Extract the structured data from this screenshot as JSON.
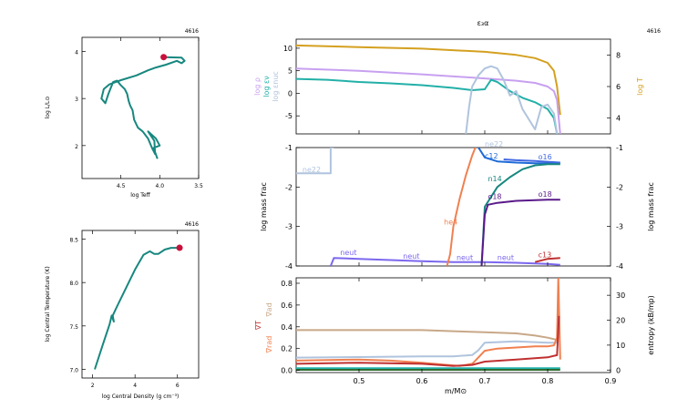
{
  "model_number": "4616",
  "chart_data": [
    {
      "id": "hr",
      "type": "line",
      "xlabel": "log Teff",
      "ylabel": "log L/L⊙",
      "xlim": [
        5.0,
        3.5
      ],
      "ylim": [
        1.3,
        4.3
      ],
      "xticks": [
        4.5,
        4.0,
        3.5
      ],
      "yticks": [
        2,
        3,
        4
      ],
      "color": "#17877f",
      "x": [
        3.95,
        3.72,
        3.68,
        3.72,
        3.78,
        3.92,
        4.05,
        4.15,
        4.3,
        4.5,
        4.65,
        4.72,
        4.75,
        4.7,
        4.66,
        4.6,
        4.55,
        4.5,
        4.45,
        4.42,
        4.4,
        4.38,
        4.35,
        4.33,
        4.28,
        4.22,
        4.15,
        4.1,
        4.06,
        4.07,
        4.15,
        4.05,
        4.0,
        4.08,
        4.03
      ],
      "y": [
        3.88,
        3.87,
        3.8,
        3.75,
        3.8,
        3.72,
        3.66,
        3.6,
        3.49,
        3.39,
        3.3,
        3.2,
        3.0,
        2.9,
        3.1,
        3.35,
        3.38,
        3.28,
        3.2,
        3.1,
        2.95,
        2.85,
        2.75,
        2.55,
        2.38,
        2.3,
        2.15,
        1.95,
        1.82,
        2.1,
        2.3,
        2.15,
        2.0,
        1.95,
        1.72
      ],
      "current_point": [
        3.95,
        3.88
      ],
      "current_color": "#c8103a"
    },
    {
      "id": "center",
      "type": "line",
      "xlabel": "log Central Density (g cm⁻³)",
      "ylabel": "log Central Temperature (K)",
      "xlim": [
        1.5,
        7.0
      ],
      "ylim": [
        6.9,
        8.6
      ],
      "xticks": [
        2,
        4,
        6
      ],
      "yticks": [
        7.0,
        7.5,
        8.0,
        8.5
      ],
      "color": "#17877f",
      "x": [
        2.1,
        2.5,
        2.8,
        2.9,
        3.0,
        2.95,
        3.2,
        3.6,
        4.0,
        4.4,
        4.7,
        4.9,
        5.1,
        5.4,
        5.7,
        6.1
      ],
      "y": [
        7.0,
        7.3,
        7.52,
        7.62,
        7.55,
        7.62,
        7.75,
        7.95,
        8.15,
        8.32,
        8.36,
        8.33,
        8.33,
        8.38,
        8.4,
        8.4
      ],
      "current_point": [
        6.1,
        8.4
      ],
      "current_color": "#c8103a"
    },
    {
      "id": "profile_top",
      "type": "line",
      "title": "ε₃α",
      "ylabel_left": [
        "log ρ",
        "log εν",
        "log εnuc"
      ],
      "ylabel_right": "log T",
      "xlim": [
        0.4,
        0.9
      ],
      "ylim": [
        -9,
        12
      ],
      "ylim_right": [
        3.0,
        9.0
      ],
      "yticks": [
        -5,
        0,
        5,
        10
      ],
      "yticks_right": [
        4,
        6,
        8
      ],
      "series": [
        {
          "color": "#d4a020",
          "axis": "right",
          "x": [
            0.4,
            0.5,
            0.6,
            0.7,
            0.75,
            0.78,
            0.8,
            0.81,
            0.815,
            0.82
          ],
          "y": [
            8.6,
            8.5,
            8.4,
            8.2,
            8.0,
            7.8,
            7.5,
            7.0,
            6.0,
            4.2
          ]
        },
        {
          "color": "#c8a0f0",
          "axis": "left",
          "x": [
            0.4,
            0.5,
            0.6,
            0.7,
            0.75,
            0.78,
            0.8,
            0.81,
            0.815,
            0.82
          ],
          "y": [
            5.5,
            5.0,
            4.2,
            3.3,
            2.8,
            2.3,
            1.5,
            0.5,
            -1.5,
            -9.0
          ]
        },
        {
          "color": "#22b0a8",
          "axis": "left",
          "x": [
            0.4,
            0.45,
            0.5,
            0.55,
            0.6,
            0.65,
            0.68,
            0.7,
            0.71,
            0.72,
            0.74,
            0.76,
            0.78,
            0.8,
            0.81,
            0.815
          ],
          "y": [
            3.2,
            3.0,
            2.5,
            2.2,
            1.8,
            1.2,
            0.7,
            0.9,
            3.0,
            2.5,
            0.5,
            -1.0,
            -2.0,
            -3.5,
            -5.5,
            -9.0
          ]
        },
        {
          "color": "#b0c4de",
          "axis": "left",
          "x": [
            0.67,
            0.675,
            0.68,
            0.69,
            0.7,
            0.71,
            0.72,
            0.73,
            0.74,
            0.75,
            0.76,
            0.78,
            0.79,
            0.8,
            0.81,
            0.815
          ],
          "y": [
            -9.0,
            -3.0,
            1.5,
            4.0,
            5.5,
            6.0,
            5.5,
            3.0,
            -0.5,
            0.5,
            -3.5,
            -8.0,
            -3.0,
            -2.5,
            -4.5,
            -9.0
          ]
        }
      ]
    },
    {
      "id": "profile_mid",
      "type": "line",
      "ylabel": "log mass frac",
      "ylabel_right": "log mass frac",
      "xlim": [
        0.4,
        0.9
      ],
      "ylim": [
        -4,
        -1
      ],
      "yticks": [
        -4,
        -3,
        -2,
        -1
      ],
      "series": [
        {
          "name": "ne22",
          "color": "#b0c4de",
          "x": [
            0.4,
            0.455,
            0.455,
            0.46
          ],
          "y": [
            -1.65,
            -1.65,
            -1.0,
            -1.0
          ]
        },
        {
          "name": "neut",
          "color": "#7b68ee",
          "x": [
            0.455,
            0.46,
            0.5,
            0.55,
            0.6,
            0.65,
            0.7,
            0.75,
            0.8,
            0.82
          ],
          "y": [
            -4.0,
            -3.8,
            -3.82,
            -3.85,
            -3.88,
            -3.9,
            -3.9,
            -3.92,
            -3.95,
            -3.97
          ]
        },
        {
          "name": "he4",
          "color": "#f08050",
          "x": [
            0.64,
            0.645,
            0.65,
            0.66,
            0.67,
            0.68,
            0.685
          ],
          "y": [
            -4.0,
            -3.7,
            -3.0,
            -2.3,
            -1.7,
            -1.2,
            -1.0
          ]
        },
        {
          "name": "c12",
          "color": "#1e6ad8",
          "x": [
            0.69,
            0.7,
            0.72,
            0.75,
            0.78,
            0.8,
            0.82
          ],
          "y": [
            -1.0,
            -1.25,
            -1.35,
            -1.38,
            -1.4,
            -1.4,
            -1.4
          ]
        },
        {
          "name": "o16",
          "color": "#4169e1",
          "x": [
            0.73,
            0.75,
            0.78,
            0.8,
            0.82
          ],
          "y": [
            -1.3,
            -1.32,
            -1.34,
            -1.36,
            -1.38
          ]
        },
        {
          "name": "n14",
          "color": "#17877f",
          "x": [
            0.695,
            0.7,
            0.72,
            0.74,
            0.76,
            0.78,
            0.8,
            0.82
          ],
          "y": [
            -4.0,
            -2.5,
            -2.0,
            -1.75,
            -1.55,
            -1.45,
            -1.42,
            -1.42
          ]
        },
        {
          "name": "o18",
          "color": "#5a1a8a",
          "x": [
            0.695,
            0.7,
            0.705,
            0.72,
            0.75,
            0.8,
            0.82
          ],
          "y": [
            -4.0,
            -2.7,
            -2.45,
            -2.4,
            -2.35,
            -2.32,
            -2.32
          ]
        },
        {
          "name": "c13",
          "color": "#c03030",
          "x": [
            0.78,
            0.8,
            0.82
          ],
          "y": [
            -3.9,
            -3.82,
            -3.8
          ]
        }
      ],
      "labels": [
        {
          "text": "ne22",
          "x": 0.41,
          "y": -1.62,
          "color": "#b0c4de"
        },
        {
          "text": "ne22",
          "x": 0.7,
          "y": -0.98,
          "color": "#b0c4de"
        },
        {
          "text": "c12",
          "x": 0.7,
          "y": -1.28,
          "color": "#1e6ad8"
        },
        {
          "text": "o16",
          "x": 0.785,
          "y": -1.3,
          "color": "#4169e1"
        },
        {
          "text": "n14",
          "x": 0.705,
          "y": -1.85,
          "color": "#17877f"
        },
        {
          "text": "o18",
          "x": 0.705,
          "y": -2.3,
          "color": "#5a1a8a"
        },
        {
          "text": "o18",
          "x": 0.785,
          "y": -2.25,
          "color": "#5a1a8a"
        },
        {
          "text": "he4",
          "x": 0.635,
          "y": -2.95,
          "color": "#f08050"
        },
        {
          "text": "neut",
          "x": 0.47,
          "y": -3.72,
          "color": "#7b68ee"
        },
        {
          "text": "neut",
          "x": 0.57,
          "y": -3.82,
          "color": "#7b68ee"
        },
        {
          "text": "neut",
          "x": 0.655,
          "y": -3.85,
          "color": "#7b68ee"
        },
        {
          "text": "neut",
          "x": 0.72,
          "y": -3.85,
          "color": "#7b68ee"
        },
        {
          "text": "c13",
          "x": 0.785,
          "y": -3.78,
          "color": "#c03030"
        }
      ]
    },
    {
      "id": "profile_bot",
      "type": "line",
      "xlabel": "m/M⊙",
      "ylabel_left": [
        "∇T",
        "∇ad",
        "∇rad"
      ],
      "ylabel_right": "entropy (kB/mp)",
      "xlim": [
        0.4,
        0.9
      ],
      "xticks": [
        0.5,
        0.6,
        0.7,
        0.8,
        0.9
      ],
      "ylim": [
        -0.02,
        0.85
      ],
      "yticks": [
        0.0,
        0.2,
        0.4,
        0.6,
        0.8
      ],
      "ylim_right": [
        -1,
        37
      ],
      "yticks_right": [
        0,
        10,
        20,
        30
      ],
      "series": [
        {
          "color": "#c8a888",
          "axis": "left",
          "x": [
            0.4,
            0.5,
            0.6,
            0.65,
            0.7,
            0.75,
            0.78,
            0.8,
            0.815
          ],
          "y": [
            0.37,
            0.37,
            0.37,
            0.36,
            0.35,
            0.34,
            0.32,
            0.3,
            0.28
          ]
        },
        {
          "color": "#b0c4de",
          "axis": "right",
          "x": [
            0.4,
            0.5,
            0.6,
            0.65,
            0.68,
            0.69,
            0.7,
            0.75,
            0.8,
            0.815
          ],
          "y": [
            5.0,
            5.2,
            5.5,
            5.5,
            6.0,
            8.0,
            11.0,
            11.5,
            11.0,
            11.0
          ]
        },
        {
          "color": "#f08050",
          "axis": "left",
          "x": [
            0.4,
            0.5,
            0.55,
            0.6,
            0.64,
            0.66,
            0.68,
            0.69,
            0.7,
            0.72,
            0.75,
            0.78,
            0.8,
            0.81,
            0.815,
            0.817,
            0.82
          ],
          "y": [
            0.09,
            0.1,
            0.09,
            0.07,
            0.05,
            0.04,
            0.06,
            0.12,
            0.18,
            0.2,
            0.21,
            0.22,
            0.22,
            0.23,
            0.3,
            0.85,
            0.1
          ]
        },
        {
          "color": "#c03030",
          "axis": "left",
          "x": [
            0.4,
            0.5,
            0.6,
            0.65,
            0.68,
            0.7,
            0.75,
            0.8,
            0.815,
            0.818
          ],
          "y": [
            0.06,
            0.07,
            0.06,
            0.04,
            0.05,
            0.08,
            0.1,
            0.12,
            0.14,
            0.5
          ]
        },
        {
          "color": "#22b0a8",
          "axis": "left",
          "x": [
            0.4,
            0.6,
            0.8,
            0.82
          ],
          "y": [
            0.02,
            0.02,
            0.02,
            0.02
          ]
        },
        {
          "color": "#2e6b30",
          "axis": "left",
          "x": [
            0.4,
            0.6,
            0.8,
            0.82
          ],
          "y": [
            0.005,
            0.005,
            0.005,
            0.005
          ]
        }
      ]
    }
  ]
}
